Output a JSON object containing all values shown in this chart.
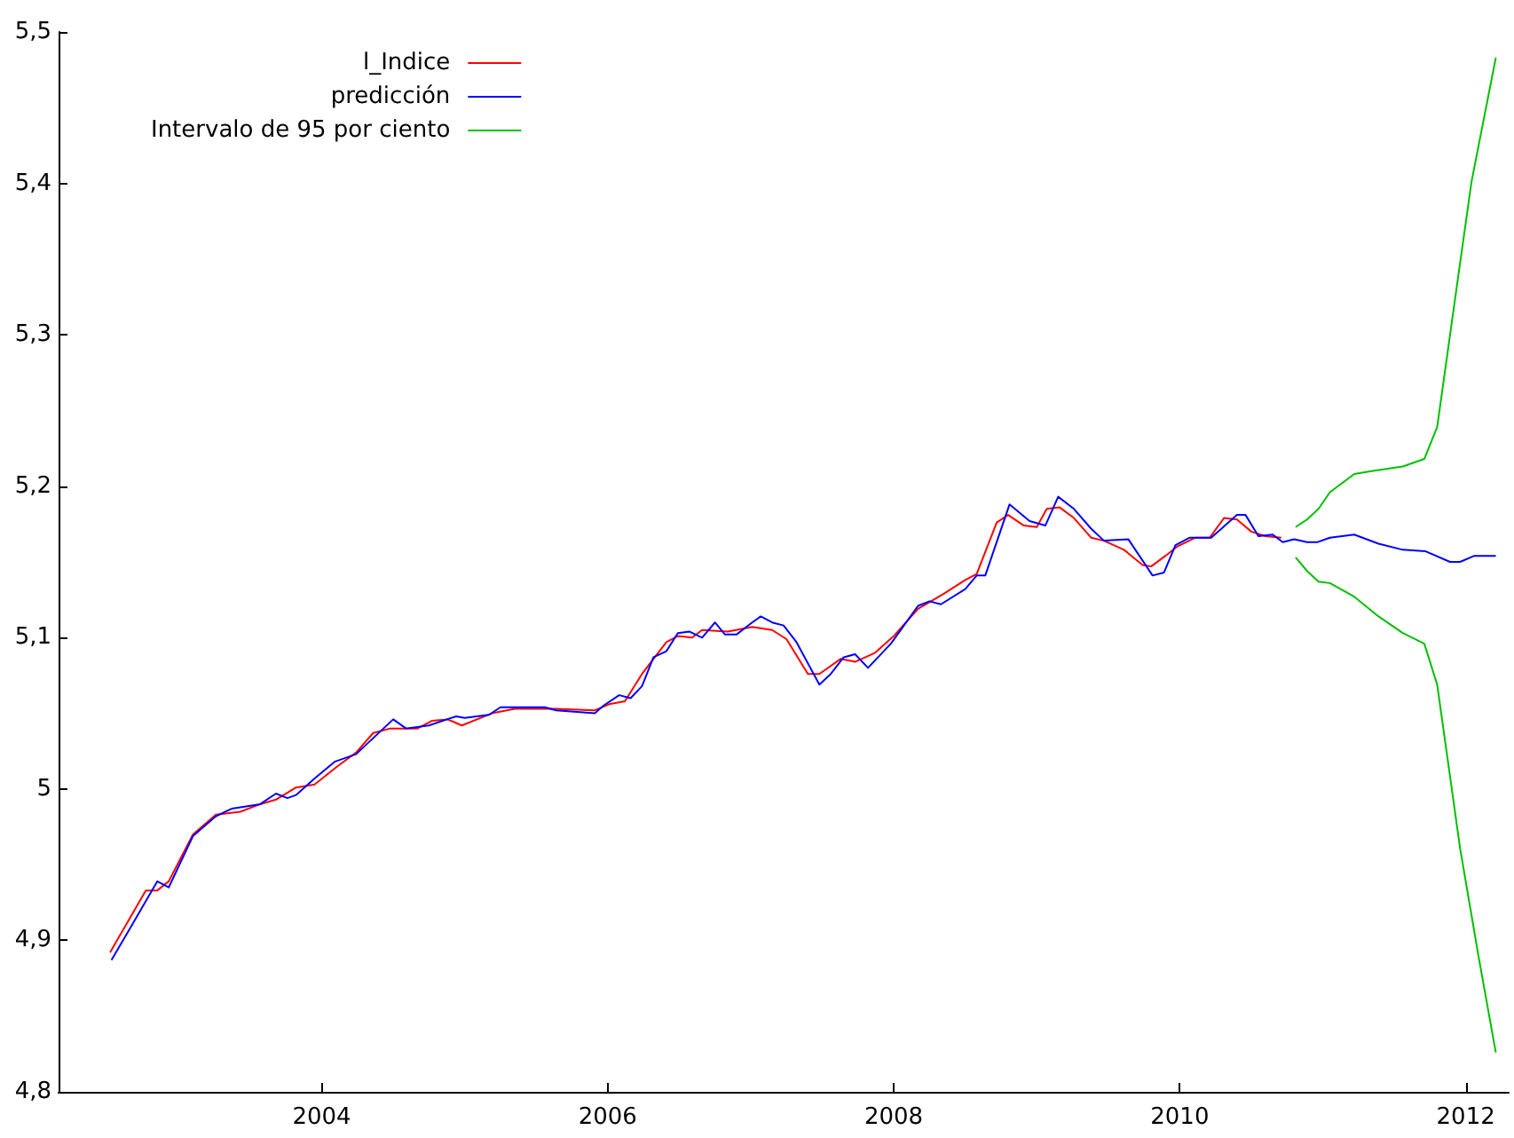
{
  "chart_data": {
    "type": "line",
    "xlim": [
      2002.16,
      2012.3
    ],
    "xticks": [
      2004,
      2006,
      2008,
      2010,
      2012
    ],
    "ylim": [
      4.8,
      5.5
    ],
    "yticks": [
      {
        "value": 4.8,
        "label": "4,8"
      },
      {
        "value": 4.9,
        "label": "4,9"
      },
      5,
      {
        "value": 5.1,
        "label": "5,1"
      },
      {
        "value": 5.2,
        "label": "5,2"
      },
      {
        "value": 5.3,
        "label": "5,3"
      },
      {
        "value": 5.4,
        "label": "5,4"
      },
      {
        "value": 5.5,
        "label": "5,5"
      }
    ],
    "grid": false,
    "legend": "top left",
    "marker": "none",
    "line_style": "solid",
    "series": [
      {
        "name": "l_Indice",
        "color": "#ff0000",
        "x": [
          2002.52,
          2002.77,
          2002.85,
          2002.93,
          2003.1,
          2003.26,
          2003.43,
          2003.57,
          2003.68,
          2003.82,
          2003.95,
          2004.11,
          2004.24,
          2004.36,
          2004.48,
          2004.67,
          2004.77,
          2004.88,
          2004.98,
          2005.19,
          2005.35,
          2005.64,
          2005.91,
          2006.01,
          2006.12,
          2006.24,
          2006.41,
          2006.49,
          2006.59,
          2006.66,
          2006.84,
          2007.01,
          2007.15,
          2007.25,
          2007.4,
          2007.48,
          2007.63,
          2007.73,
          2007.87,
          2008.0,
          2008.17,
          2008.35,
          2008.5,
          2008.58,
          2008.72,
          2008.8,
          2008.91,
          2009.0,
          2009.07,
          2009.16,
          2009.26,
          2009.38,
          2009.47,
          2009.61,
          2009.74,
          2009.8,
          2009.9,
          2009.98,
          2010.11,
          2010.21,
          2010.31,
          2010.4,
          2010.5,
          2010.6,
          2010.71
        ],
        "values": [
          4.892,
          4.933,
          4.933,
          4.939,
          4.97,
          4.983,
          4.985,
          4.99,
          4.993,
          5.001,
          5.003,
          5.015,
          5.024,
          5.037,
          5.04,
          5.04,
          5.045,
          5.046,
          5.042,
          5.05,
          5.053,
          5.053,
          5.052,
          5.056,
          5.058,
          5.076,
          5.097,
          5.101,
          5.1,
          5.105,
          5.104,
          5.107,
          5.105,
          5.099,
          5.076,
          5.076,
          5.086,
          5.084,
          5.09,
          5.101,
          5.119,
          5.129,
          5.138,
          5.142,
          5.176,
          5.181,
          5.174,
          5.173,
          5.185,
          5.186,
          5.179,
          5.166,
          5.164,
          5.158,
          5.148,
          5.147,
          5.154,
          5.16,
          5.166,
          5.166,
          5.179,
          5.178,
          5.17,
          5.167,
          5.166
        ]
      },
      {
        "name": "predicción",
        "color": "#0000ff",
        "x": [
          2002.53,
          2002.66,
          2002.85,
          2002.93,
          2003.1,
          2003.26,
          2003.37,
          2003.57,
          2003.68,
          2003.76,
          2003.82,
          2003.95,
          2004.09,
          2004.24,
          2004.5,
          2004.59,
          2004.75,
          2004.94,
          2005.0,
          2005.17,
          2005.25,
          2005.56,
          2005.64,
          2005.91,
          2005.97,
          2006.08,
          2006.16,
          2006.24,
          2006.32,
          2006.41,
          2006.49,
          2006.57,
          2006.66,
          2006.75,
          2006.82,
          2006.9,
          2007.01,
          2007.07,
          2007.15,
          2007.23,
          2007.32,
          2007.48,
          2007.56,
          2007.65,
          2007.73,
          2007.82,
          2007.98,
          2008.17,
          2008.25,
          2008.33,
          2008.5,
          2008.58,
          2008.64,
          2008.81,
          2008.95,
          2009.06,
          2009.15,
          2009.26,
          2009.38,
          2009.47,
          2009.64,
          2009.81,
          2009.89,
          2009.97,
          2010.07,
          2010.22,
          2010.4,
          2010.46,
          2010.55,
          2010.65,
          2010.72,
          2010.8,
          2010.89,
          2010.96,
          2011.05,
          2011.22,
          2011.39,
          2011.56,
          2011.72,
          2011.89,
          2011.96,
          2012.06,
          2012.21
        ],
        "values": [
          4.887,
          4.908,
          4.939,
          4.935,
          4.969,
          4.982,
          4.987,
          4.99,
          4.997,
          4.994,
          4.996,
          5.007,
          5.018,
          5.023,
          5.046,
          5.04,
          5.042,
          5.048,
          5.047,
          5.049,
          5.054,
          5.054,
          5.052,
          5.05,
          5.055,
          5.062,
          5.06,
          5.068,
          5.087,
          5.091,
          5.103,
          5.104,
          5.1,
          5.11,
          5.102,
          5.102,
          5.11,
          5.114,
          5.11,
          5.108,
          5.097,
          5.069,
          5.076,
          5.087,
          5.089,
          5.08,
          5.096,
          5.121,
          5.124,
          5.122,
          5.132,
          5.141,
          5.141,
          5.188,
          5.177,
          5.174,
          5.193,
          5.185,
          5.172,
          5.164,
          5.165,
          5.141,
          5.143,
          5.161,
          5.166,
          5.166,
          5.181,
          5.181,
          5.167,
          5.168,
          5.163,
          5.165,
          5.163,
          5.163,
          5.166,
          5.168,
          5.162,
          5.158,
          5.157,
          5.15,
          5.15,
          5.154,
          5.154
        ]
      },
      {
        "name": "Intervalo de 95 por ciento",
        "color": "#00c000",
        "x": [
          2010.81,
          2010.89,
          2010.97,
          2011.05,
          2011.22,
          2011.34,
          2011.56,
          2011.71,
          2011.8,
          2011.93,
          2012.04,
          2012.21
        ],
        "values": [
          5.173,
          5.178,
          5.185,
          5.196,
          5.208,
          5.21,
          5.213,
          5.218,
          5.239,
          5.327,
          5.401,
          5.483
        ]
      },
      {
        "color": "#00c000",
        "x": [
          2010.81,
          2010.89,
          2010.97,
          2011.05,
          2011.22,
          2011.39,
          2011.56,
          2011.71,
          2011.8,
          2011.96,
          2012.09,
          2012.21
        ],
        "values": [
          5.153,
          5.144,
          5.137,
          5.136,
          5.127,
          5.114,
          5.103,
          5.096,
          5.069,
          4.961,
          4.889,
          4.826
        ]
      }
    ]
  }
}
